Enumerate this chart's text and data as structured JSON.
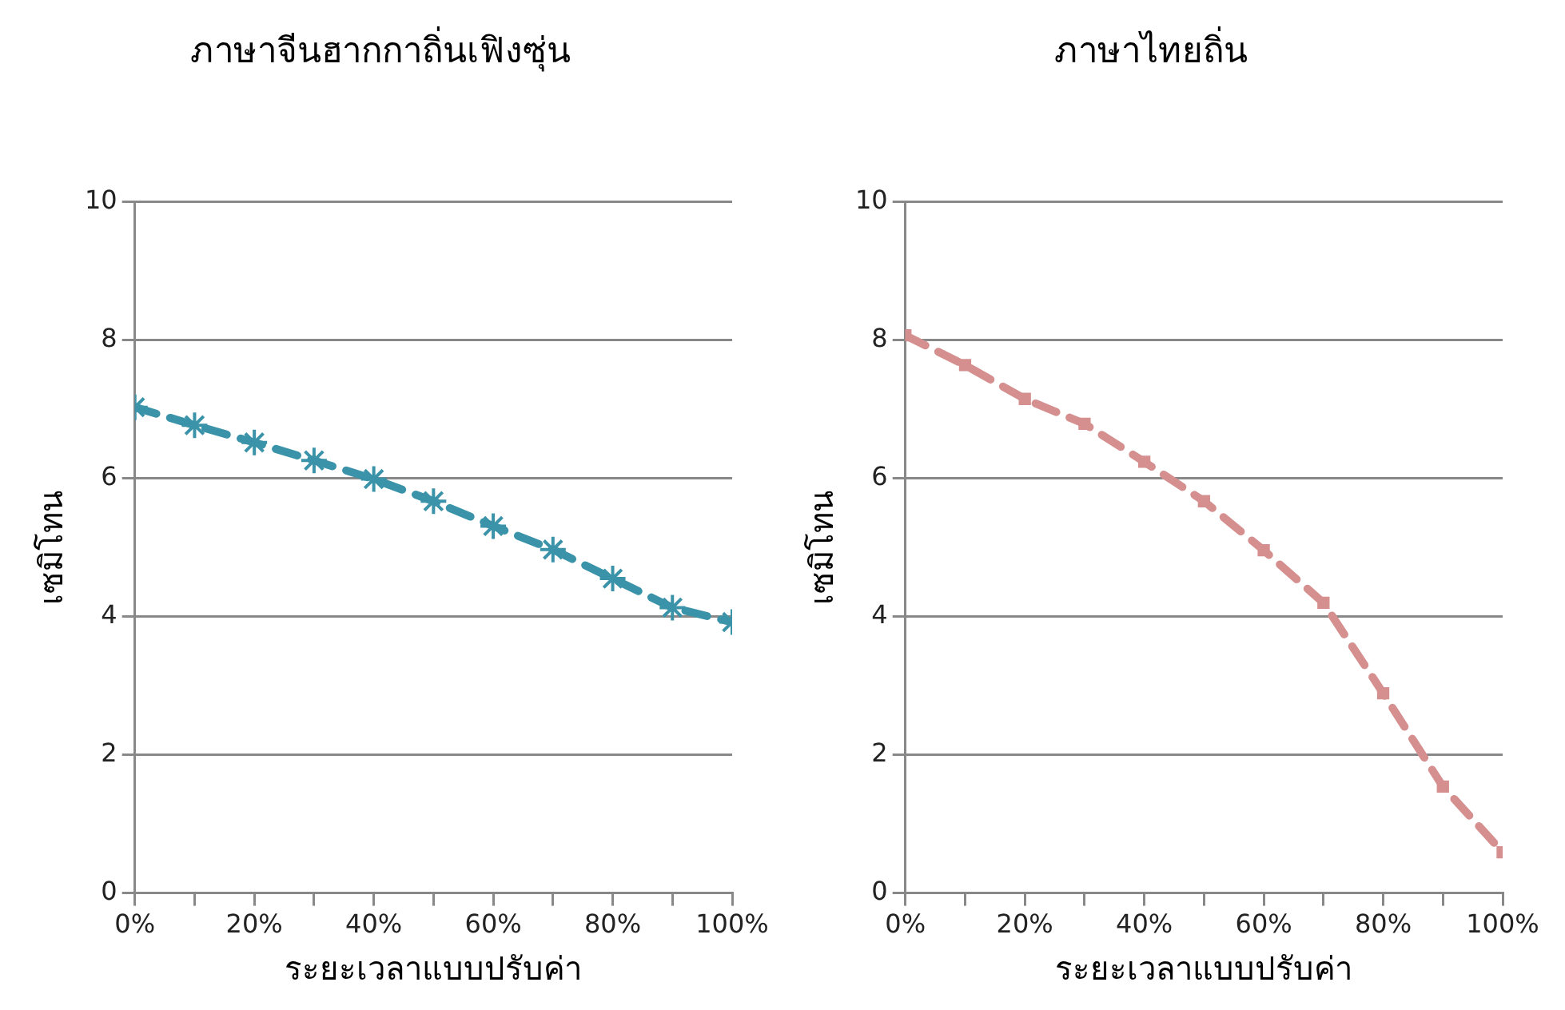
{
  "chart_data": [
    {
      "type": "line",
      "title": "ภาษาจีนฮากกาถิ่นเฟิงซุ่น",
      "xlabel": "ระยะเวลาแบบปรับค่า",
      "ylabel": "เซมิโทน",
      "x": [
        0,
        10,
        20,
        30,
        40,
        50,
        60,
        70,
        80,
        90,
        100
      ],
      "series": [
        {
          "color": "#3a93a8",
          "values": [
            7.03,
            6.77,
            6.52,
            6.26,
            5.99,
            5.67,
            5.31,
            4.97,
            4.55,
            4.13,
            3.92
          ]
        }
      ],
      "xlim": [
        0,
        100
      ],
      "xticks": [
        {
          "value": 0,
          "label": "0%"
        },
        {
          "value": 10,
          "label": null
        },
        {
          "value": 20,
          "label": "20%"
        },
        {
          "value": 30,
          "label": null
        },
        {
          "value": 40,
          "label": "40%"
        },
        {
          "value": 50,
          "label": null
        },
        {
          "value": 60,
          "label": "60%"
        },
        {
          "value": 70,
          "label": null
        },
        {
          "value": 80,
          "label": "80%"
        },
        {
          "value": 90,
          "label": null
        },
        {
          "value": 100,
          "label": "100%"
        }
      ],
      "ylim": [
        0,
        10
      ],
      "yticks": [
        0,
        2,
        4,
        6,
        8,
        10
      ],
      "grid": "y",
      "marker": "cross",
      "line_style": "dashed"
    },
    {
      "type": "line",
      "title": "ภาษาไทยถิ่น",
      "xlabel": "ระยะเวลาแบบปรับค่า",
      "ylabel": "เซมิโทน",
      "x": [
        0,
        10,
        20,
        30,
        40,
        50,
        60,
        70,
        80,
        90,
        100
      ],
      "series": [
        {
          "color": "#d58f8f",
          "values": [
            8.07,
            7.64,
            7.15,
            6.79,
            6.24,
            5.67,
            4.96,
            4.2,
            2.89,
            1.54,
            0.59
          ]
        }
      ],
      "xlim": [
        0,
        100
      ],
      "xticks": [
        {
          "value": 0,
          "label": "0%"
        },
        {
          "value": 10,
          "label": null
        },
        {
          "value": 20,
          "label": "20%"
        },
        {
          "value": 30,
          "label": null
        },
        {
          "value": 40,
          "label": "40%"
        },
        {
          "value": 50,
          "label": null
        },
        {
          "value": 60,
          "label": "60%"
        },
        {
          "value": 70,
          "label": null
        },
        {
          "value": 80,
          "label": "80%"
        },
        {
          "value": 90,
          "label": null
        },
        {
          "value": 100,
          "label": "100%"
        }
      ],
      "ylim": [
        0,
        10
      ],
      "yticks": [
        0,
        2,
        4,
        6,
        8,
        10
      ],
      "grid": "y",
      "marker": "square",
      "line_style": "dashed"
    }
  ]
}
